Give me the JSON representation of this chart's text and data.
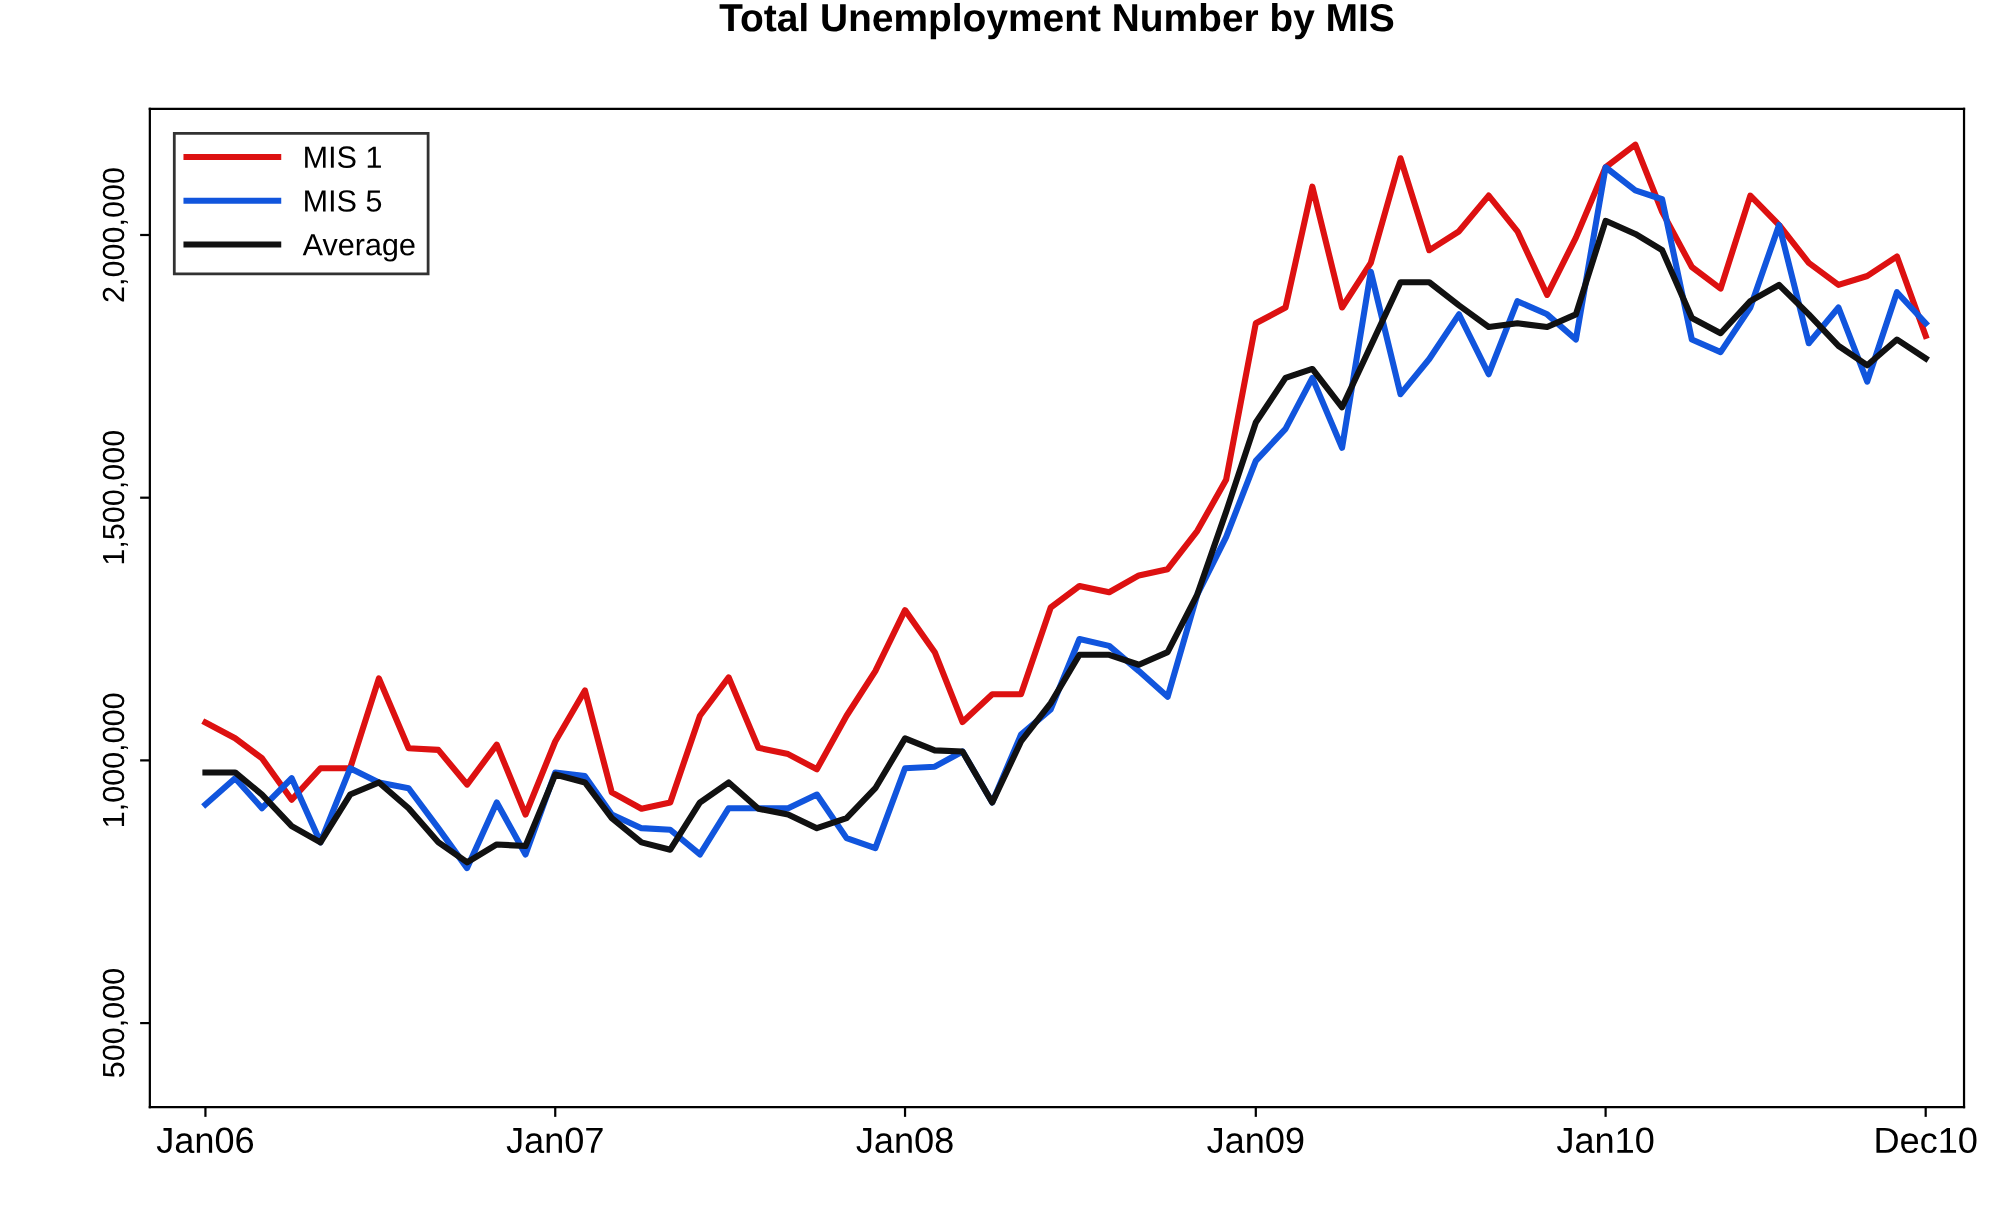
{
  "chart_data": {
    "type": "line",
    "title": "Total Unemployment Number by MIS",
    "x": [
      "2006-01",
      "2006-02",
      "2006-03",
      "2006-04",
      "2006-05",
      "2006-06",
      "2006-07",
      "2006-08",
      "2006-09",
      "2006-10",
      "2006-11",
      "2006-12",
      "2007-01",
      "2007-02",
      "2007-03",
      "2007-04",
      "2007-05",
      "2007-06",
      "2007-07",
      "2007-08",
      "2007-09",
      "2007-10",
      "2007-11",
      "2007-12",
      "2008-01",
      "2008-02",
      "2008-03",
      "2008-04",
      "2008-05",
      "2008-06",
      "2008-07",
      "2008-08",
      "2008-09",
      "2008-10",
      "2008-11",
      "2008-12",
      "2009-01",
      "2009-02",
      "2009-03",
      "2009-04",
      "2009-05",
      "2009-06",
      "2009-07",
      "2009-08",
      "2009-09",
      "2009-10",
      "2009-11",
      "2009-12",
      "2010-01",
      "2010-02",
      "2010-03",
      "2010-04",
      "2010-05",
      "2010-06",
      "2010-07",
      "2010-08",
      "2010-09",
      "2010-10",
      "2010-11",
      "2010-12"
    ],
    "series": [
      {
        "name": "MIS 1",
        "color": "#dd1111",
        "values": [
          1072000,
          1042000,
          1004000,
          925000,
          985000,
          985000,
          1156000,
          1023000,
          1020000,
          954000,
          1030000,
          897000,
          1036000,
          1133000,
          939000,
          908000,
          920000,
          1085000,
          1158000,
          1024000,
          1012000,
          983000,
          1085000,
          1170000,
          1286000,
          1206000,
          1073000,
          1126000,
          1126000,
          1291000,
          1332000,
          1320000,
          1352000,
          1364000,
          1437000,
          1534000,
          1832000,
          1862000,
          2092000,
          1862000,
          1947000,
          2146000,
          1971000,
          2007000,
          2075000,
          2007000,
          1886000,
          1995000,
          2129000,
          2172000,
          2044000,
          1939000,
          1898000,
          2075000,
          2019000,
          1947000,
          1905000,
          1922000,
          1959000,
          1808000
        ]
      },
      {
        "name": "MIS 5",
        "color": "#1155dd",
        "values": [
          916000,
          966000,
          909000,
          966000,
          844000,
          985000,
          958000,
          947000,
          871000,
          795000,
          920000,
          821000,
          977000,
          970000,
          897000,
          871000,
          868000,
          821000,
          909000,
          909000,
          909000,
          935000,
          852000,
          833000,
          985000,
          988000,
          1017000,
          920000,
          1049000,
          1097000,
          1231000,
          1218000,
          1170000,
          1121000,
          1316000,
          1425000,
          1570000,
          1631000,
          1728000,
          1595000,
          1930000,
          1697000,
          1764000,
          1849000,
          1735000,
          1874000,
          1849000,
          1801000,
          2129000,
          2085000,
          2068000,
          1801000,
          1777000,
          1862000,
          2019000,
          1794000,
          1862000,
          1721000,
          1891000,
          1832000
        ]
      },
      {
        "name": "Average",
        "color": "#111111",
        "values": [
          977000,
          977000,
          935000,
          875000,
          844000,
          935000,
          958000,
          909000,
          844000,
          806000,
          840000,
          837000,
          973000,
          958000,
          890000,
          844000,
          830000,
          920000,
          958000,
          908000,
          897000,
          871000,
          890000,
          947000,
          1042000,
          1019000,
          1017000,
          920000,
          1036000,
          1109000,
          1201000,
          1201000,
          1182000,
          1206000,
          1316000,
          1473000,
          1643000,
          1728000,
          1745000,
          1672000,
          1789000,
          1910000,
          1910000,
          1866000,
          1825000,
          1832000,
          1825000,
          1849000,
          2027000,
          2002000,
          1971000,
          1842000,
          1813000,
          1874000,
          1905000,
          1849000,
          1789000,
          1752000,
          1801000,
          1765000
        ]
      }
    ],
    "xlim": [
      "2005-11-04",
      "2011-01-10"
    ],
    "xticks": [
      {
        "value": "2006-01",
        "label": "Jan06"
      },
      {
        "value": "2007-01",
        "label": "Jan07"
      },
      {
        "value": "2008-01",
        "label": "Jan08"
      },
      {
        "value": "2009-01",
        "label": "Jan09"
      },
      {
        "value": "2010-01",
        "label": "Jan10"
      },
      {
        "value": "2010-12",
        "label": "Dec10"
      }
    ],
    "ylim": [
      340000,
      2240000
    ],
    "yticks": [
      {
        "value": 500000,
        "label": "500,000"
      },
      {
        "value": 1000000,
        "label": "1,000,000"
      },
      {
        "value": 1500000,
        "label": "1,500,000"
      },
      {
        "value": 2000000,
        "label": "2,000,000"
      }
    ],
    "grid": false,
    "legend": "top left",
    "marker": "none",
    "line_style": "solid"
  }
}
